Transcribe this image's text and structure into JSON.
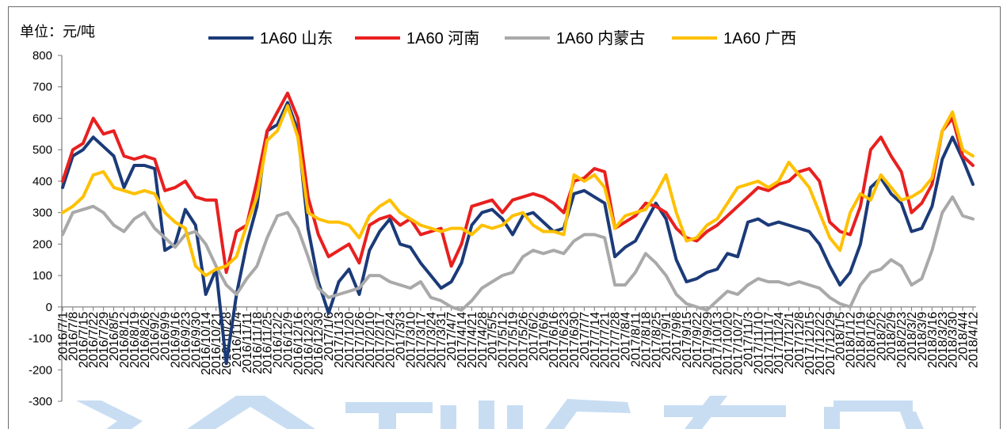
{
  "chart_data": {
    "type": "line",
    "ylabel": "单位：元/吨",
    "ylim": [
      -300,
      800
    ],
    "yticks": [
      800,
      700,
      600,
      500,
      400,
      300,
      200,
      100,
      0,
      -100,
      -200,
      -300
    ],
    "legend": "top",
    "grid": false,
    "x": [
      "2016/7/1",
      "2016/7/8",
      "2016/7/15",
      "2016/7/22",
      "2016/7/29",
      "2016/8/5",
      "2016/8/12",
      "2016/8/19",
      "2016/8/26",
      "2016/9/2",
      "2016/9/9",
      "2016/9/16",
      "2016/9/23",
      "2016/9/30",
      "2016/10/14",
      "2016/10/21",
      "2016/10/28",
      "2016/11/4",
      "2016/11/11",
      "2016/11/18",
      "2016/11/25",
      "2016/12/2",
      "2016/12/9",
      "2016/12/16",
      "2016/12/23",
      "2016/12/30",
      "2017/1/6",
      "2017/1/13",
      "2017/1/20",
      "2017/1/26",
      "2017/2/10",
      "2017/2/17",
      "2017/2/24",
      "2017/3/3",
      "2017/3/10",
      "2017/3/17",
      "2017/3/24",
      "2017/3/31",
      "2017/4/7",
      "2017/4/14",
      "2017/4/21",
      "2017/4/28",
      "2017/5/5",
      "2017/5/12",
      "2017/5/19",
      "2017/5/26",
      "2017/6/2",
      "2017/6/9",
      "2017/6/16",
      "2017/6/23",
      "2017/6/30",
      "2017/7/7",
      "2017/7/14",
      "2017/7/21",
      "2017/7/28",
      "2017/8/4",
      "2017/8/11",
      "2017/8/18",
      "2017/8/25",
      "2017/9/1",
      "2017/9/8",
      "2017/9/15",
      "2017/9/22",
      "2017/9/29",
      "2017/10/13",
      "2017/10/20",
      "2017/10/27",
      "2017/11/3",
      "2017/11/10",
      "2017/11/17",
      "2017/11/24",
      "2017/12/1",
      "2017/12/8",
      "2017/12/15",
      "2017/12/22",
      "2017/12/29",
      "2018/1/5",
      "2018/1/12",
      "2018/1/19",
      "2018/1/26",
      "2018/2/2",
      "2018/2/9",
      "2018/2/23",
      "2018/3/2",
      "2018/3/9",
      "2018/3/16",
      "2018/3/23",
      "2018/3/30",
      "2018/4/4",
      "2018/4/12"
    ],
    "series": [
      {
        "name": "1A60 山东",
        "color": "#1b3a78",
        "values": [
          380,
          480,
          500,
          540,
          510,
          480,
          380,
          450,
          450,
          440,
          180,
          200,
          310,
          260,
          40,
          120,
          -180,
          40,
          200,
          320,
          560,
          580,
          650,
          560,
          250,
          80,
          -20,
          80,
          120,
          40,
          180,
          240,
          280,
          200,
          190,
          140,
          100,
          60,
          80,
          140,
          260,
          300,
          310,
          280,
          230,
          290,
          300,
          270,
          240,
          250,
          360,
          370,
          350,
          330,
          160,
          190,
          210,
          270,
          330,
          280,
          150,
          80,
          90,
          110,
          120,
          170,
          160,
          270,
          280,
          260,
          270,
          260,
          250,
          240,
          200,
          130,
          70,
          110,
          200,
          380,
          410,
          360,
          330,
          240,
          250,
          320,
          470,
          540,
          470,
          390
        ]
      },
      {
        "name": "1A60 河南",
        "color": "#e8201f",
        "values": [
          400,
          500,
          520,
          600,
          550,
          560,
          480,
          470,
          480,
          470,
          370,
          380,
          400,
          350,
          340,
          340,
          110,
          240,
          260,
          400,
          560,
          620,
          680,
          600,
          350,
          230,
          160,
          180,
          200,
          140,
          260,
          280,
          290,
          260,
          280,
          230,
          240,
          250,
          130,
          200,
          320,
          330,
          340,
          300,
          340,
          350,
          360,
          350,
          330,
          300,
          400,
          410,
          440,
          430,
          250,
          270,
          290,
          330,
          320,
          300,
          250,
          220,
          210,
          240,
          260,
          290,
          320,
          350,
          380,
          370,
          390,
          400,
          430,
          440,
          400,
          270,
          240,
          230,
          320,
          500,
          540,
          480,
          430,
          300,
          330,
          390,
          560,
          600,
          480,
          450
        ]
      },
      {
        "name": "1A60 内蒙古",
        "color": "#a9a9a9",
        "values": [
          230,
          300,
          310,
          320,
          300,
          260,
          240,
          280,
          300,
          250,
          220,
          190,
          230,
          240,
          200,
          130,
          70,
          40,
          90,
          130,
          220,
          290,
          300,
          250,
          160,
          60,
          30,
          40,
          50,
          60,
          100,
          100,
          80,
          70,
          60,
          80,
          30,
          20,
          0,
          -10,
          20,
          60,
          80,
          100,
          110,
          160,
          180,
          170,
          180,
          170,
          210,
          230,
          230,
          220,
          70,
          70,
          110,
          170,
          140,
          100,
          40,
          10,
          0,
          -10,
          20,
          50,
          40,
          70,
          90,
          80,
          80,
          70,
          80,
          70,
          60,
          30,
          10,
          0,
          70,
          110,
          120,
          150,
          130,
          70,
          90,
          180,
          300,
          350,
          290,
          280
        ]
      },
      {
        "name": "1A60 广西",
        "color": "#ffc000",
        "values": [
          300,
          320,
          350,
          420,
          430,
          380,
          370,
          360,
          370,
          360,
          300,
          270,
          250,
          130,
          100,
          120,
          130,
          160,
          260,
          350,
          530,
          560,
          640,
          540,
          300,
          280,
          270,
          270,
          260,
          220,
          290,
          320,
          340,
          300,
          280,
          260,
          250,
          240,
          250,
          250,
          230,
          260,
          250,
          260,
          290,
          300,
          260,
          240,
          240,
          230,
          420,
          400,
          420,
          380,
          250,
          290,
          300,
          310,
          360,
          420,
          300,
          210,
          220,
          260,
          280,
          330,
          380,
          390,
          400,
          380,
          400,
          460,
          420,
          380,
          300,
          220,
          180,
          300,
          360,
          340,
          420,
          380,
          340,
          350,
          370,
          410,
          560,
          620,
          500,
          480
        ]
      }
    ]
  }
}
